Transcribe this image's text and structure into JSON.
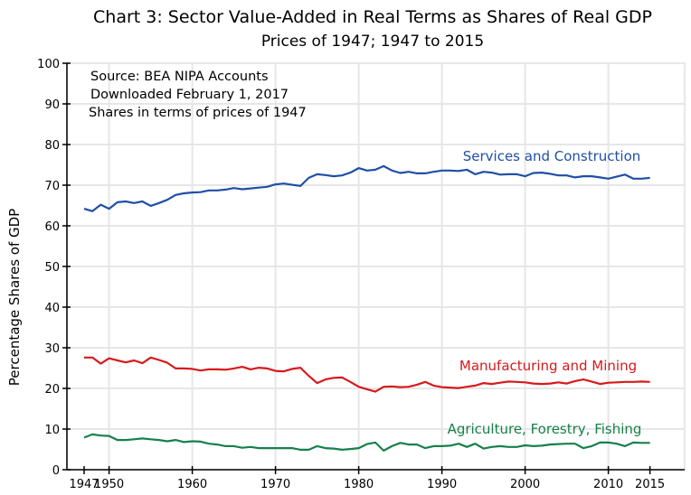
{
  "chart_data": {
    "type": "line",
    "title": "Chart 3:  Sector Value-Added in Real Terms as Shares of Real GDP",
    "subtitle": "Prices of 1947;  1947 to 2015",
    "xlabel": "",
    "ylabel": "Percentage Shares of GDP",
    "xlim": [
      1947,
      2020
    ],
    "ylim": [
      0,
      100
    ],
    "grid": true,
    "x_ticks": [
      1947,
      1950,
      1960,
      1970,
      1980,
      1990,
      2000,
      2010,
      2015
    ],
    "x_tick_labels": [
      "1947",
      "1950",
      "1960",
      "1970",
      "1980",
      "1990",
      "2000",
      "2010",
      "2015"
    ],
    "x_gridlines": [
      1950,
      1960,
      1970,
      1980,
      1990,
      2000,
      2010
    ],
    "y_ticks": [
      0,
      10,
      20,
      30,
      40,
      50,
      60,
      70,
      80,
      90,
      100
    ],
    "y_tick_labels": [
      "0",
      "10",
      "20",
      "30",
      "40",
      "50",
      "60",
      "70",
      "80",
      "90",
      "100"
    ],
    "annotations": [
      "Source: BEA NIPA Accounts",
      "Downloaded February 1, 2017",
      "Shares in terms of prices of 1947"
    ],
    "x": [
      1947,
      1948,
      1949,
      1950,
      1951,
      1952,
      1953,
      1954,
      1955,
      1956,
      1957,
      1958,
      1959,
      1960,
      1961,
      1962,
      1963,
      1964,
      1965,
      1966,
      1967,
      1968,
      1969,
      1970,
      1971,
      1972,
      1973,
      1974,
      1975,
      1976,
      1977,
      1978,
      1979,
      1980,
      1981,
      1982,
      1983,
      1984,
      1985,
      1986,
      1987,
      1988,
      1989,
      1990,
      1991,
      1992,
      1993,
      1994,
      1995,
      1996,
      1997,
      1998,
      1999,
      2000,
      2001,
      2002,
      2003,
      2004,
      2005,
      2006,
      2007,
      2008,
      2009,
      2010,
      2011,
      2012,
      2013,
      2014,
      2015
    ],
    "series": [
      {
        "name": "Services and Construction",
        "color": "#1f4fa6",
        "label_position": "above-right",
        "values": [
          64.2,
          63.6,
          65.2,
          64.2,
          65.8,
          66.0,
          65.6,
          66.0,
          64.9,
          65.6,
          66.4,
          67.6,
          68.0,
          68.2,
          68.3,
          68.7,
          68.7,
          68.9,
          69.3,
          69.0,
          69.2,
          69.4,
          69.6,
          70.2,
          70.4,
          70.1,
          69.8,
          71.8,
          72.7,
          72.5,
          72.2,
          72.4,
          73.1,
          74.2,
          73.6,
          73.8,
          74.7,
          73.6,
          73.0,
          73.3,
          72.9,
          72.9,
          73.3,
          73.6,
          73.6,
          73.5,
          73.8,
          72.7,
          73.3,
          73.1,
          72.6,
          72.7,
          72.7,
          72.2,
          73.0,
          73.1,
          72.8,
          72.4,
          72.4,
          71.9,
          72.2,
          72.2,
          71.9,
          71.6,
          72.1,
          72.6,
          71.6,
          71.6,
          71.8
        ]
      },
      {
        "name": "Manufacturing and Mining",
        "color": "#d7191c",
        "label_position": "above-right",
        "values": [
          27.6,
          27.6,
          26.1,
          27.4,
          26.9,
          26.4,
          26.9,
          26.2,
          27.6,
          27.0,
          26.3,
          24.9,
          24.9,
          24.8,
          24.4,
          24.7,
          24.7,
          24.6,
          24.9,
          25.3,
          24.7,
          25.1,
          24.9,
          24.3,
          24.2,
          24.8,
          25.1,
          23.1,
          21.3,
          22.2,
          22.6,
          22.7,
          21.6,
          20.4,
          19.8,
          19.2,
          20.4,
          20.5,
          20.3,
          20.4,
          20.9,
          21.6,
          20.7,
          20.3,
          20.2,
          20.1,
          20.4,
          20.7,
          21.3,
          21.1,
          21.4,
          21.7,
          21.6,
          21.5,
          21.2,
          21.1,
          21.2,
          21.5,
          21.2,
          21.8,
          22.2,
          21.7,
          21.1,
          21.4,
          21.5,
          21.6,
          21.6,
          21.7,
          21.6
        ]
      },
      {
        "name": "Agriculture, Forestry, Fishing",
        "color": "#17804a",
        "label_position": "above-right",
        "values": [
          7.9,
          8.7,
          8.4,
          8.3,
          7.3,
          7.3,
          7.5,
          7.7,
          7.5,
          7.3,
          7.0,
          7.3,
          6.8,
          7.0,
          6.9,
          6.4,
          6.2,
          5.8,
          5.8,
          5.4,
          5.6,
          5.3,
          5.3,
          5.3,
          5.3,
          5.3,
          4.9,
          4.9,
          5.8,
          5.3,
          5.2,
          4.9,
          5.1,
          5.3,
          6.3,
          6.7,
          4.7,
          5.8,
          6.6,
          6.2,
          6.2,
          5.3,
          5.8,
          5.8,
          5.9,
          6.4,
          5.6,
          6.4,
          5.2,
          5.6,
          5.8,
          5.6,
          5.6,
          6.0,
          5.8,
          5.9,
          6.2,
          6.3,
          6.4,
          6.4,
          5.3,
          5.8,
          6.7,
          6.7,
          6.4,
          5.8,
          6.7,
          6.6,
          6.6
        ]
      }
    ]
  }
}
